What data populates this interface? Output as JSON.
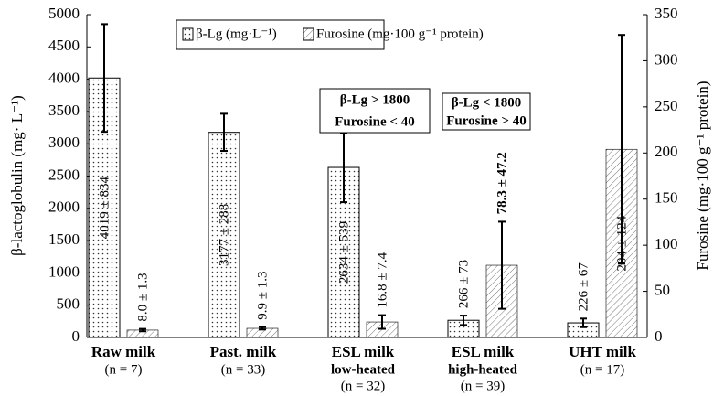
{
  "chart_data": {
    "type": "bar",
    "categories": [
      "Raw milk",
      "Past. milk",
      "ESL milk",
      "ESL milk",
      "UHT milk"
    ],
    "category_notes": [
      [
        "(n = 7)"
      ],
      [
        "(n = 33)"
      ],
      [
        "low-heated",
        "(n = 32)"
      ],
      [
        "high-heated",
        "(n = 39)"
      ],
      [
        "(n = 17)"
      ]
    ],
    "y_label": "β-lactoglobulin (mg· L⁻¹)",
    "y2_label": "Furosine (mg·100 g⁻¹ protein)",
    "ylim": [
      0,
      5000
    ],
    "yticks": [
      0,
      500,
      1000,
      1500,
      2000,
      2500,
      3000,
      3500,
      4000,
      4500,
      5000
    ],
    "y2lim": [
      0,
      350
    ],
    "y2ticks": [
      0,
      50,
      100,
      150,
      200,
      250,
      300,
      350
    ],
    "series": [
      {
        "name": "β-Lg (mg·L⁻¹)",
        "values": [
          4019,
          3177,
          2634,
          266,
          226
        ],
        "errors": [
          834,
          288,
          539,
          73,
          67
        ],
        "value_labels": [
          "4019 ± 834",
          "3177 ± 288",
          "2634 ± 539",
          "266 ± 73",
          "226 ± 67"
        ]
      },
      {
        "name": "Furosine (mg·100 g⁻¹ protein)",
        "axis": "y2",
        "values": [
          8.0,
          9.9,
          16.8,
          78.3,
          204
        ],
        "errors": [
          1.3,
          1.3,
          7.4,
          47.2,
          124
        ],
        "value_labels": [
          "8.0 ± 1.3",
          "9.9 ± 1.3",
          "16.8 ± 7.4",
          "78.3 ± 47.2",
          "204 ± 124"
        ]
      }
    ],
    "annotations": [
      [
        "β-Lg > 1800",
        "Furosine < 40"
      ],
      [
        "β-Lg < 1800",
        "Furosine > 40"
      ]
    ]
  }
}
